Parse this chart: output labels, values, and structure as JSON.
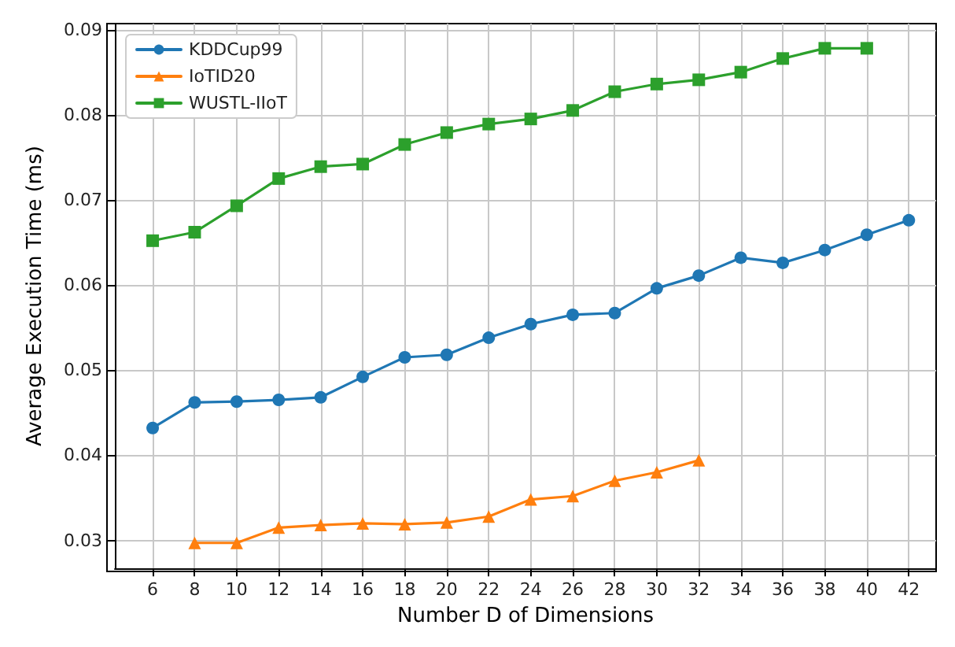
{
  "chart_data": {
    "type": "line",
    "xlabel": "Number D of Dimensions",
    "ylabel": "Average Execution Time (ms)",
    "xlim": [
      4.2,
      43.3
    ],
    "xticks": [
      6,
      8,
      10,
      12,
      14,
      16,
      18,
      20,
      22,
      24,
      26,
      28,
      30,
      32,
      34,
      36,
      38,
      40,
      42
    ],
    "ylim": [
      0.0267,
      0.0907
    ],
    "yticks": [
      0.03,
      0.04,
      0.05,
      0.06,
      0.07,
      0.08,
      0.09
    ],
    "grid": true,
    "legend": "top left",
    "line_style": "solid",
    "series": [
      {
        "name": "KDDCup99",
        "color": "#1f77b4",
        "marker": "circle",
        "x": [
          6,
          8,
          10,
          12,
          14,
          16,
          18,
          20,
          22,
          24,
          26,
          28,
          30,
          32,
          34,
          36,
          38,
          40,
          42
        ],
        "values": [
          0.0432,
          0.0462,
          0.0463,
          0.0465,
          0.0468,
          0.0492,
          0.0515,
          0.0518,
          0.0538,
          0.0554,
          0.0565,
          0.0567,
          0.0596,
          0.0611,
          0.0632,
          0.0626,
          0.0641,
          0.0659,
          0.0676
        ]
      },
      {
        "name": "IoTID20",
        "color": "#ff7f0e",
        "marker": "triangle",
        "x": [
          8,
          10,
          12,
          14,
          16,
          18,
          20,
          22,
          24,
          26,
          28,
          30,
          32
        ],
        "values": [
          0.0297,
          0.0297,
          0.0315,
          0.0318,
          0.032,
          0.0319,
          0.0321,
          0.0328,
          0.0348,
          0.0352,
          0.037,
          0.038,
          0.0394
        ]
      },
      {
        "name": "WUSTL-IIoT",
        "color": "#2ca02c",
        "marker": "square",
        "x": [
          6,
          8,
          10,
          12,
          14,
          16,
          18,
          20,
          22,
          24,
          26,
          28,
          30,
          32,
          34,
          36,
          38,
          40
        ],
        "values": [
          0.0652,
          0.0662,
          0.0693,
          0.0725,
          0.0739,
          0.0742,
          0.0765,
          0.0779,
          0.0789,
          0.0795,
          0.0805,
          0.0827,
          0.0836,
          0.0841,
          0.085,
          0.0866,
          0.0878,
          0.0878
        ]
      }
    ]
  }
}
